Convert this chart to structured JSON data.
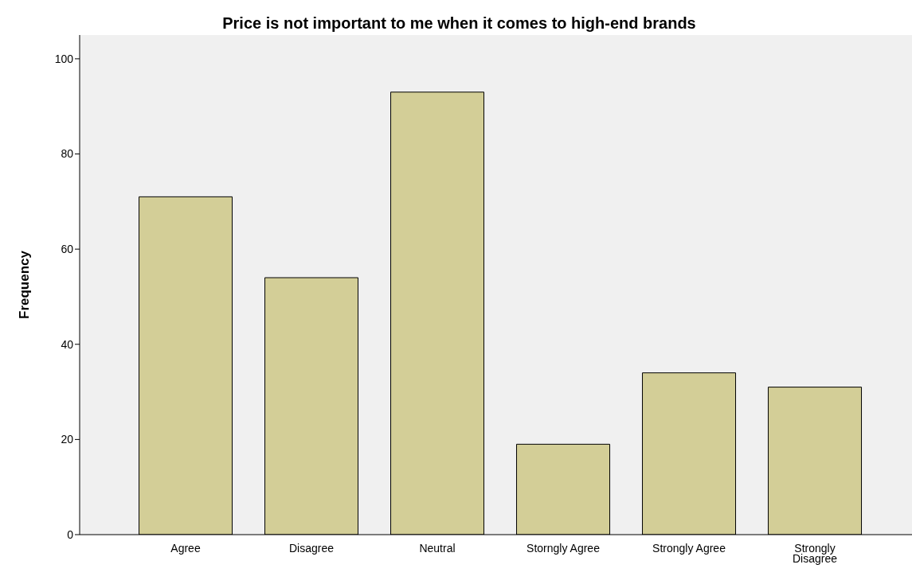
{
  "chart_data": {
    "type": "bar",
    "title": "Price is not important to me when it comes to high-end brands",
    "ylabel": "Frequency",
    "categories": [
      "Agree",
      "Disagree",
      "Neutral",
      "Storngly Agree",
      "Strongly Agree",
      "Strongly Disagree"
    ],
    "values": [
      71,
      54,
      93,
      19,
      34,
      31
    ],
    "color": "#d3ce97",
    "ylim": [
      0,
      105
    ],
    "yticks": [
      0,
      20,
      40,
      60,
      80,
      100
    ],
    "grid": false,
    "legend": false
  }
}
